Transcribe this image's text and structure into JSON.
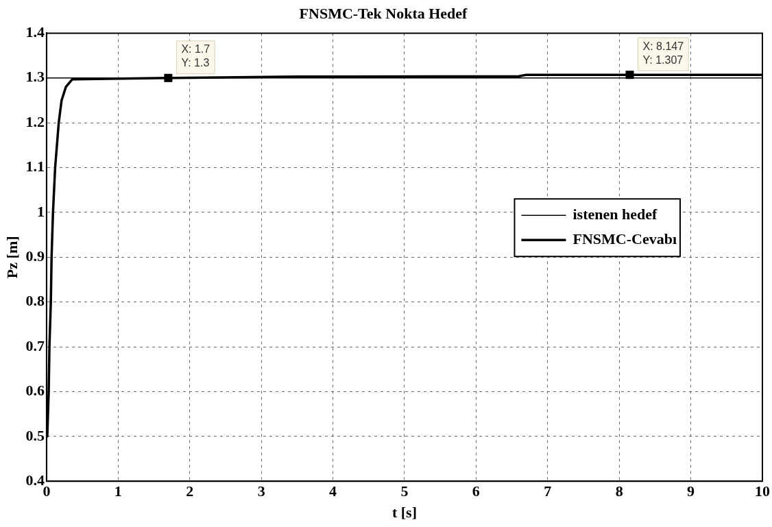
{
  "chart_data": {
    "type": "line",
    "title": "FNSMC-Tek Nokta Hedef",
    "xlabel": "t [s]",
    "ylabel": "Pz [m]",
    "xlim": [
      0,
      10
    ],
    "xticks": [
      0,
      1,
      2,
      3,
      4,
      5,
      6,
      7,
      8,
      9,
      10
    ],
    "ylim": [
      0.4,
      1.4
    ],
    "yticks": [
      0.4,
      0.5,
      0.6,
      0.7,
      0.8,
      0.9,
      1,
      1.1,
      1.2,
      1.3,
      1.4
    ],
    "grid": true,
    "legend": "right",
    "marker": "none",
    "line_style": "solid",
    "series": [
      {
        "name": "istenen hedef",
        "color": "#000000",
        "x": [
          0,
          10
        ],
        "values": [
          1.3,
          1.3
        ]
      },
      {
        "name": "FNSMC-Cevabı",
        "color": "#000000",
        "x": [
          0,
          0.01,
          0.03,
          0.04,
          0.06,
          0.07,
          0.09,
          0.12,
          0.17,
          0.21,
          0.27,
          0.36,
          1.7,
          3.5,
          6.6,
          6.7,
          8.147,
          10
        ],
        "values": [
          0.5,
          0.5,
          0.6,
          0.7,
          0.8,
          0.9,
          1.0,
          1.1,
          1.2,
          1.25,
          1.28,
          1.297,
          1.3,
          1.303,
          1.304,
          1.307,
          1.307,
          1.307
        ]
      }
    ],
    "annotations": [
      {
        "text": "X: 1.7\nY: 1.3",
        "x": 1.7,
        "y": 1.3
      },
      {
        "text": "X: 8.147\nY: 1.307",
        "x": 8.147,
        "y": 1.307
      }
    ]
  }
}
